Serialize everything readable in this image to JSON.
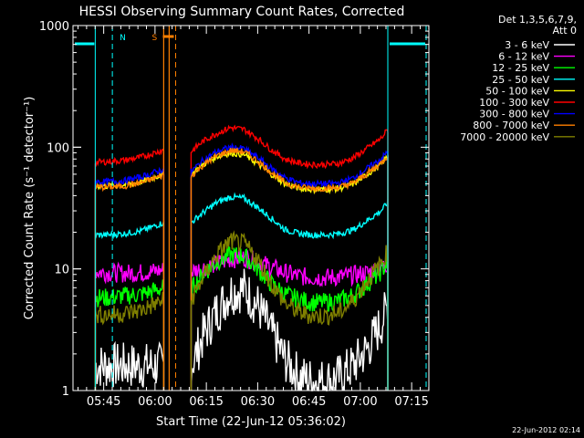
{
  "colors": {
    "background": "#000000",
    "axes": "#ffffff",
    "text": "#ffffff",
    "marker_cyan": "#00ffff",
    "marker_orange": "#ff7f00"
  },
  "chart_data": {
    "type": "line",
    "title": "HESSI Observing Summary Count Rates, Corrected",
    "xlabel": "Start Time (22-Jun-12 05:36:02)",
    "ylabel": "Corrected Count Rate (s⁻¹ detector⁻¹)",
    "y_scale": "log",
    "xlim_minutes": [
      0,
      104
    ],
    "ylim": [
      1,
      1000
    ],
    "x_ticks": [
      "05:45",
      "06:00",
      "06:15",
      "06:30",
      "06:45",
      "07:00",
      "07:15"
    ],
    "y_ticks": [
      "1",
      "10",
      "100",
      "1000"
    ],
    "legend_header": [
      "Det 1,3,5,6,7,9,",
      "Att 0"
    ],
    "legend_position": "right",
    "footer_timestamp": "22-Jun-2012 02:14",
    "markers": [
      {
        "label": "N",
        "x_minutes": 11.5,
        "color": "#00ffff"
      },
      {
        "label": "S",
        "x_minutes": 30.0,
        "color": "#ff7f00"
      }
    ],
    "data_gaps_minutes": [
      [
        0,
        6.5
      ],
      [
        26.5,
        34.5
      ],
      [
        92,
        104
      ]
    ],
    "x_minutes": [
      6.5,
      10,
      15,
      20,
      26.5,
      34.5,
      38,
      42,
      46,
      50,
      54,
      58,
      62,
      66,
      70,
      74,
      78,
      82,
      86,
      90,
      92
    ],
    "series": [
      {
        "name": "3 - 6 keV",
        "color": "#ffffff",
        "values": [
          1.6,
          1.6,
          1.6,
          1.6,
          1.6,
          1.6,
          2.8,
          4.5,
          6.5,
          6.8,
          5.0,
          3.0,
          1.8,
          1.3,
          1.2,
          1.2,
          1.3,
          1.6,
          2.2,
          3.5,
          5.0
        ]
      },
      {
        "name": "6 - 12 keV",
        "color": "#ff00ff",
        "values": [
          9.5,
          9.3,
          9.2,
          9.3,
          9.8,
          9.5,
          10.2,
          11.0,
          12.0,
          12.3,
          11.5,
          10.3,
          9.3,
          8.7,
          8.5,
          8.5,
          8.6,
          8.9,
          9.3,
          10.3,
          11.0
        ]
      },
      {
        "name": "12 - 25 keV",
        "color": "#00ff00",
        "values": [
          5.8,
          5.8,
          6.0,
          6.2,
          7.0,
          6.8,
          9.0,
          11.5,
          13.0,
          12.8,
          10.0,
          7.5,
          6.2,
          5.6,
          5.3,
          5.3,
          5.5,
          6.1,
          7.5,
          9.5,
          11.5
        ]
      },
      {
        "name": "25 - 50 keV",
        "color": "#00ffff",
        "values": [
          19.0,
          19.0,
          19.5,
          20.5,
          24.0,
          24.0,
          29.0,
          35.0,
          39.0,
          38.0,
          32.0,
          26.0,
          21.0,
          19.5,
          19.0,
          19.0,
          19.5,
          21.0,
          25.0,
          30.0,
          35.0
        ]
      },
      {
        "name": "50 - 100 keV",
        "color": "#ffff00",
        "values": [
          48.0,
          48.0,
          49.0,
          52.0,
          60.0,
          60.0,
          72.0,
          84.0,
          90.0,
          87.0,
          73.0,
          60.0,
          50.0,
          46.0,
          45.0,
          45.0,
          46.0,
          50.0,
          60.0,
          72.0,
          85.0
        ]
      },
      {
        "name": "100 - 300 keV",
        "color": "#ff0000",
        "values": [
          75.0,
          76.0,
          78.0,
          83.0,
          95.0,
          92.0,
          112.0,
          130.0,
          145.0,
          140.0,
          118.0,
          95.0,
          80.0,
          74.0,
          72.0,
          72.0,
          74.0,
          82.0,
          98.0,
          118.0,
          140.0
        ]
      },
      {
        "name": "300 - 800 keV",
        "color": "#0000ff",
        "values": [
          52.0,
          52.0,
          53.0,
          57.0,
          66.0,
          63.0,
          78.0,
          92.0,
          100.0,
          97.0,
          82.0,
          67.0,
          56.0,
          51.0,
          50.0,
          50.0,
          51.0,
          56.0,
          67.0,
          80.0,
          92.0
        ]
      },
      {
        "name": "800 - 7000 keV",
        "color": "#ff7f00",
        "values": [
          47.0,
          47.0,
          48.0,
          51.0,
          59.0,
          58.0,
          71.0,
          85.0,
          94.0,
          92.0,
          77.0,
          62.0,
          51.0,
          47.0,
          46.0,
          46.0,
          47.0,
          51.0,
          61.0,
          74.0,
          86.0
        ]
      },
      {
        "name": "7000 - 20000 keV",
        "color": "#7f7f00",
        "values": [
          4.2,
          4.2,
          4.3,
          4.6,
          5.5,
          5.5,
          8.5,
          13.0,
          17.0,
          16.0,
          12.0,
          7.5,
          5.2,
          4.4,
          4.1,
          4.1,
          4.4,
          5.5,
          8.0,
          11.0,
          14.0
        ]
      }
    ]
  }
}
